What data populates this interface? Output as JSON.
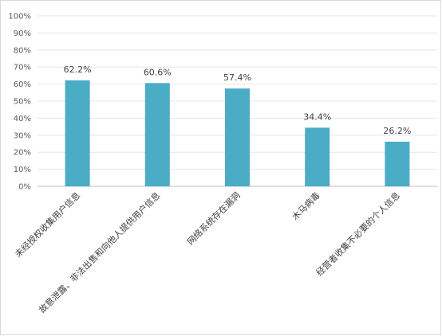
{
  "chart_data": {
    "type": "bar",
    "title": "",
    "xlabel": "",
    "ylabel": "",
    "categories": [
      "未经授权收集用户信息",
      "故意泄露、非法出售和向他人提供用户信息",
      "网络系统存在漏洞",
      "木马病毒",
      "经营者收集不必要的个人信息"
    ],
    "values": [
      62.2,
      60.6,
      57.4,
      34.4,
      26.2
    ],
    "data_labels": [
      "62.2%",
      "60.6%",
      "57.4%",
      "34.4%",
      "26.2%"
    ],
    "ylim": [
      0,
      100
    ],
    "y_ticks": [
      "0%",
      "10%",
      "20%",
      "30%",
      "40%",
      "50%",
      "60%",
      "70%",
      "80%",
      "90%",
      "100%"
    ],
    "grid": true,
    "legend": "none",
    "colors": {
      "bar": "#4bacc6"
    }
  }
}
